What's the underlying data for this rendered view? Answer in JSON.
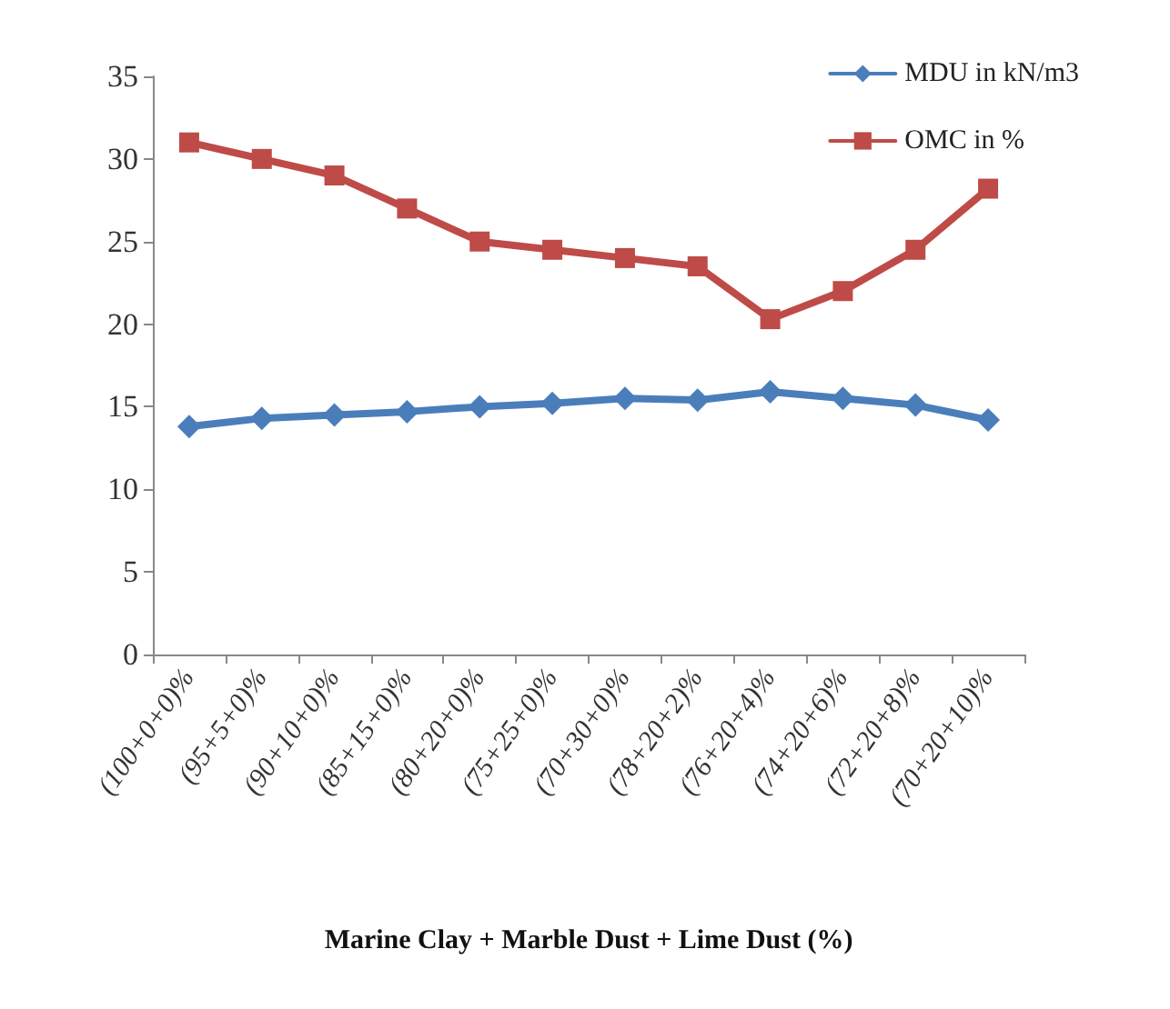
{
  "chart_data": {
    "type": "line",
    "xlabel": "Marine Clay + Marble Dust + Lime Dust (%)",
    "categories": [
      "(100+0+0)%",
      "(95+5+0)%",
      "(90+10+0)%",
      "(85+15+0)%",
      "(80+20+0)%",
      "(75+25+0)%",
      "(70+30+0)%",
      "(78+20+2)%",
      "(76+20+4)%",
      "(74+20+6)%",
      "(72+20+8)%",
      "(70+20+10)%"
    ],
    "series": [
      {
        "name": "MDU in kN/m3",
        "color": "#4a7ebb",
        "marker": "diamond",
        "values": [
          13.8,
          14.3,
          14.5,
          14.7,
          15,
          15.2,
          15.5,
          15.4,
          15.9,
          15.5,
          15.1,
          14.2
        ]
      },
      {
        "name": "OMC in %",
        "color": "#be4b48",
        "marker": "square",
        "values": [
          31,
          30,
          29,
          27,
          25,
          24.5,
          24,
          23.5,
          20.3,
          22,
          24.5,
          28.2
        ]
      }
    ],
    "ylim": [
      0,
      35
    ],
    "yticks": [
      0,
      5,
      10,
      15,
      20,
      25,
      30,
      35
    ],
    "grid": false,
    "legend": "top right",
    "line_style": "solid"
  }
}
